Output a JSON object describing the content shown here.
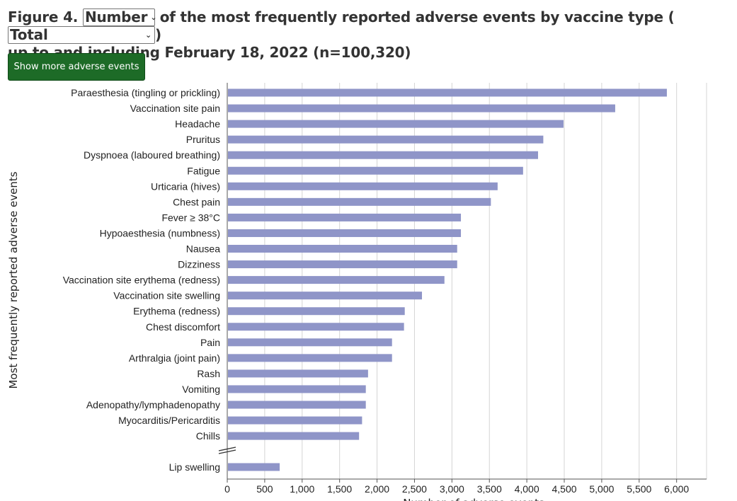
{
  "heading": {
    "figure_label": "Figure 4.",
    "measure_select": "Number",
    "middle_text": "of the most frequently reported adverse events by vaccine type (",
    "vaccine_select": "Total",
    "close_paren": ")",
    "line2": "up to and including February 18, 2022 (n=100,320)"
  },
  "show_more_button": "Show more adverse events",
  "chart_data": {
    "type": "bar",
    "orientation": "horizontal",
    "categories": [
      "Paraesthesia (tingling or prickling)",
      "Vaccination site pain",
      "Headache",
      "Pruritus",
      "Dyspnoea (laboured breathing)",
      "Fatigue",
      "Urticaria (hives)",
      "Chest pain",
      "Fever ≥ 38°C",
      "Hypoaesthesia (numbness)",
      "Nausea",
      "Dizziness",
      "Vaccination site erythema (redness)",
      "Vaccination site swelling",
      "Erythema (redness)",
      "Chest discomfort",
      "Pain",
      "Arthralgia (joint pain)",
      "Rash",
      "Vomiting",
      "Adenopathy/lymphadenopathy",
      "Myocarditis/Pericarditis",
      "Chills"
    ],
    "values": [
      5870,
      5180,
      4490,
      4220,
      4150,
      3950,
      3610,
      3520,
      3120,
      3120,
      3070,
      3070,
      2900,
      2600,
      2370,
      2360,
      2200,
      2200,
      1880,
      1850,
      1850,
      1800,
      1760
    ],
    "extra_categories": [
      "Lip swelling"
    ],
    "extra_values": [
      700
    ],
    "axis_break_between": [
      "Chills",
      "Lip swelling"
    ],
    "xlabel": "Number of adverse events",
    "ylabel": "Most frequently reported adverse events",
    "xlim": [
      0,
      6400
    ],
    "xticks": [
      0,
      500,
      1000,
      1500,
      2000,
      2500,
      3000,
      3500,
      4000,
      4500,
      5000,
      5500,
      6000
    ],
    "xtick_labels": [
      "0",
      "500",
      "1,000",
      "1,500",
      "2,000",
      "2,500",
      "3,000",
      "3,500",
      "4,000",
      "4,500",
      "5,000",
      "5,500",
      "6,000"
    ],
    "grid": "vertical",
    "bar_color": "#8f95c8"
  }
}
